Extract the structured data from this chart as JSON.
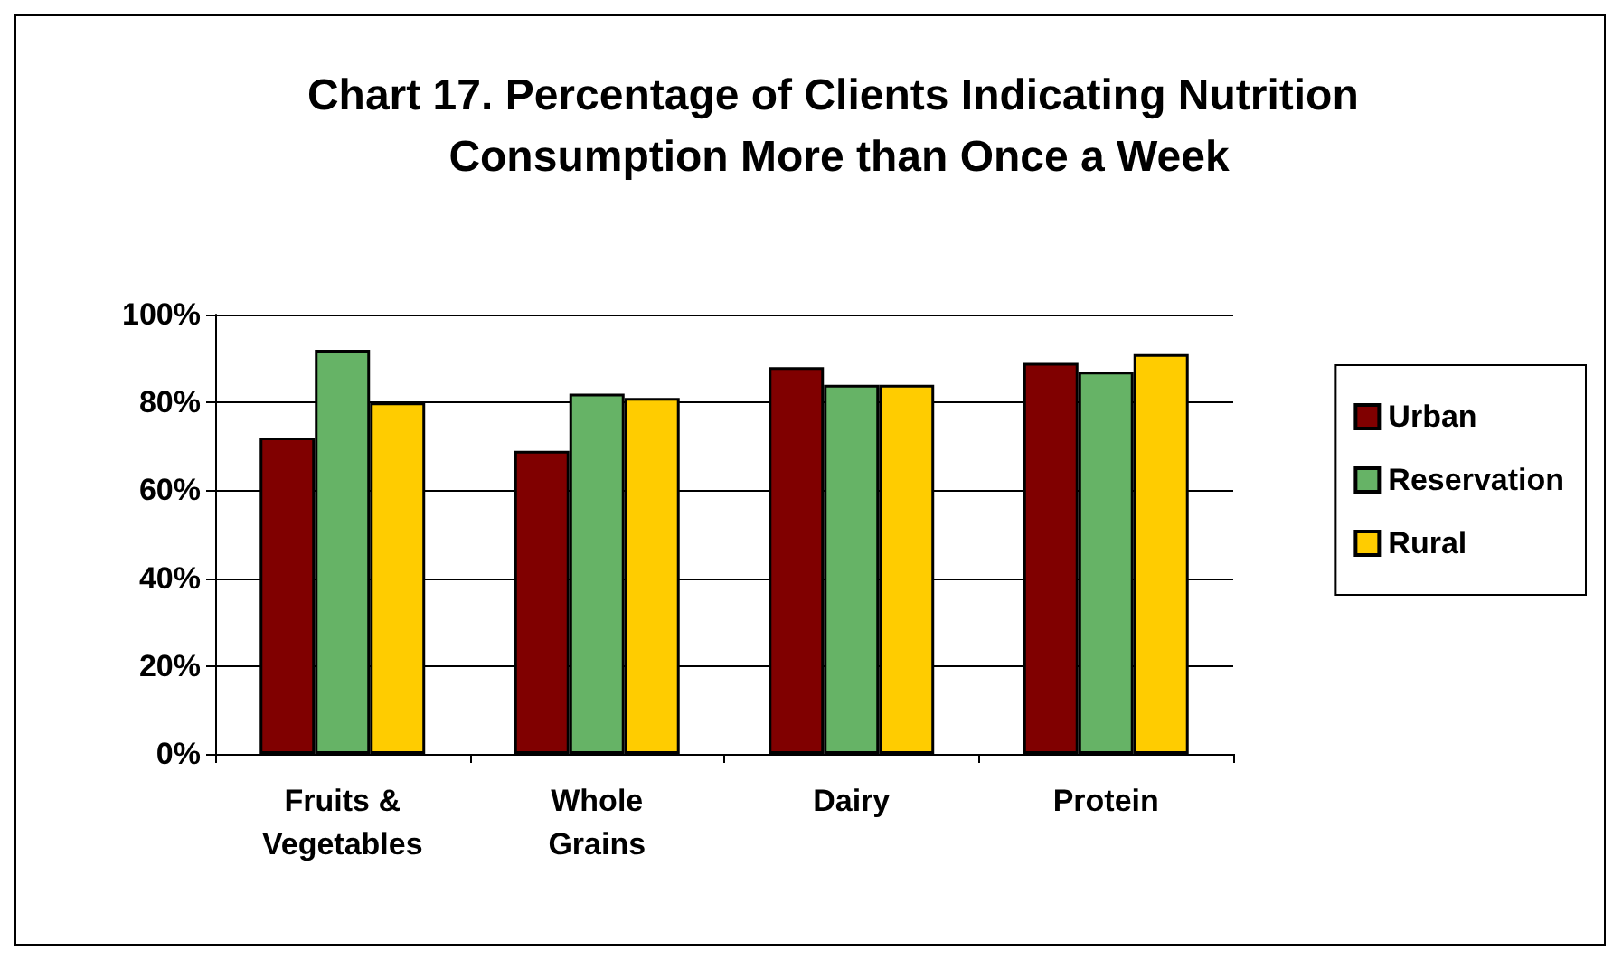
{
  "chart_data": {
    "type": "bar",
    "title": "Chart 17. Percentage of Clients Indicating Nutrition Consumption More than Once a Week",
    "categories": [
      "Fruits &\nVegetables",
      "Whole\nGrains",
      "Dairy",
      "Protein"
    ],
    "series": [
      {
        "name": "Urban",
        "color": "#800000",
        "values": [
          72,
          69,
          88,
          89
        ]
      },
      {
        "name": "Reservation",
        "color": "#66b366",
        "values": [
          92,
          82,
          84,
          87
        ]
      },
      {
        "name": "Rural",
        "color": "#ffcc00",
        "values": [
          80,
          81,
          84,
          91
        ]
      }
    ],
    "ylim": [
      0,
      100
    ],
    "yticks": [
      {
        "value": 0,
        "label": "0%"
      },
      {
        "value": 20,
        "label": "20%"
      },
      {
        "value": 40,
        "label": "40%"
      },
      {
        "value": 60,
        "label": "60%"
      },
      {
        "value": 80,
        "label": "80%"
      },
      {
        "value": 100,
        "label": "100%"
      }
    ],
    "grid": "y",
    "legend": "right"
  }
}
